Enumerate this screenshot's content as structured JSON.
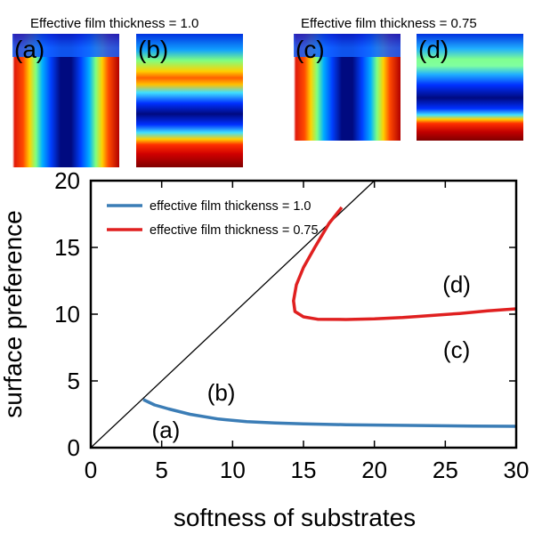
{
  "headers": [
    "Effective film thickness = 1.0",
    "Effective film thickness = 0.75"
  ],
  "panels": [
    {
      "label": "(a)",
      "kind": "phase",
      "colormap": "jet"
    },
    {
      "label": "(b)",
      "kind": "stripes",
      "colormap": "jet"
    },
    {
      "label": "(c)",
      "kind": "phase",
      "colormap": "jet"
    },
    {
      "label": "(d)",
      "kind": "stripes",
      "colormap": "jet"
    }
  ],
  "chart_data": {
    "type": "line",
    "title": "",
    "xlabel": "softness of substrates",
    "ylabel": "surface preference",
    "xlim": [
      0,
      30
    ],
    "ylim": [
      0,
      20
    ],
    "xticks": [
      0,
      5,
      10,
      15,
      20,
      25,
      30
    ],
    "yticks": [
      0,
      5,
      10,
      15,
      20
    ],
    "grid": false,
    "legend_position": "top-left",
    "series": [
      {
        "name": "effective film thickenss = 1.0",
        "color": "#3b7db6",
        "x": [
          3.7,
          4.5,
          5.5,
          7,
          9,
          11,
          13,
          15,
          18,
          21,
          24,
          27,
          30
        ],
        "y": [
          3.6,
          3.2,
          2.9,
          2.5,
          2.15,
          1.95,
          1.85,
          1.78,
          1.72,
          1.68,
          1.65,
          1.62,
          1.6
        ]
      },
      {
        "name": "effective film thickness = 0.75",
        "color": "#e02020",
        "x": [
          17.7,
          16.8,
          15.8,
          15.0,
          14.5,
          14.3,
          14.4,
          15.0,
          16.0,
          18.0,
          20,
          22,
          24,
          26,
          28,
          30
        ],
        "y": [
          18.0,
          16.8,
          15.0,
          13.5,
          12.2,
          11.0,
          10.2,
          9.8,
          9.62,
          9.6,
          9.65,
          9.75,
          9.9,
          10.05,
          10.25,
          10.4
        ]
      },
      {
        "name": "",
        "color": "#000000",
        "x": [
          0,
          20
        ],
        "y": [
          0,
          20
        ]
      }
    ],
    "annotations": [
      {
        "text": "(a)",
        "x": 5.3,
        "y": 1.4
      },
      {
        "text": "(b)",
        "x": 9.2,
        "y": 4.2
      },
      {
        "text": "(c)",
        "x": 25.8,
        "y": 7.4
      },
      {
        "text": "(d)",
        "x": 25.8,
        "y": 12.3
      }
    ]
  }
}
